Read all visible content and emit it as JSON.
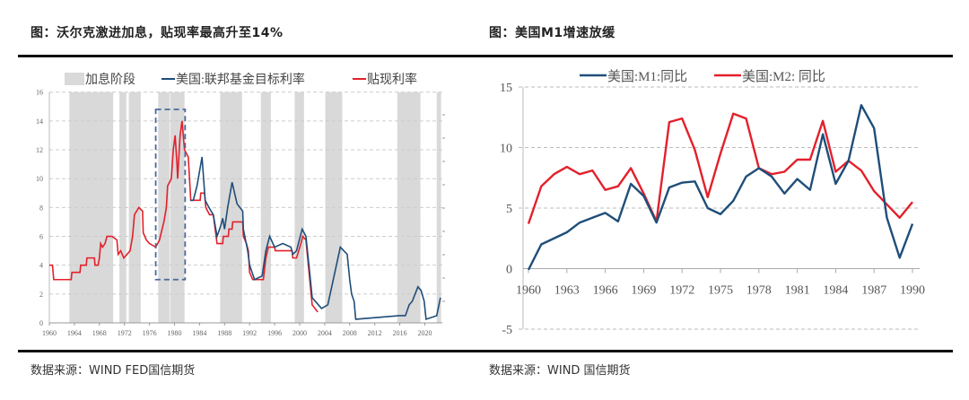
{
  "captions": {
    "left": "图：沃尔克激进加息，贴现率最高升至14%",
    "right": "图：美国M1增速放缓"
  },
  "sources": {
    "left": "数据来源：WIND FED国信期货",
    "right": "数据来源：WIND 国信期货"
  },
  "chart_data": [
    {
      "type": "line",
      "legend": {
        "placement": "top",
        "items": [
          "加息阶段",
          "美国:联邦基金目标利率",
          "贴现利率"
        ]
      },
      "colors": {
        "shade": "#d9d9d9",
        "fed": "#1f4e79",
        "discount": "#e3202b",
        "box": "#4a6a9a"
      },
      "xlim": [
        1960,
        2022.8
      ],
      "ylim": [
        0,
        16
      ],
      "x_ticks": [
        1960,
        1964,
        1968,
        1972,
        1976,
        1980,
        1984,
        1988,
        1992,
        1996,
        2000,
        2004,
        2008,
        2012,
        2016,
        2020
      ],
      "y_ticks": [
        0,
        2,
        4,
        6,
        8,
        10,
        12,
        14,
        16
      ],
      "grid": "horizontal dashed",
      "shaded_periods": [
        [
          1963.2,
          1970.2
        ],
        [
          1971.2,
          1972.3
        ],
        [
          1972.7,
          1974.6
        ],
        [
          1977.4,
          1979.2
        ],
        [
          1979.3,
          1981.6
        ],
        [
          1987.3,
          1990.8
        ],
        [
          1993.8,
          1995.4
        ],
        [
          1999.2,
          2000.7
        ],
        [
          2004.1,
          2006.8
        ],
        [
          2015.6,
          2019.3
        ],
        [
          2021.9,
          2022.6
        ]
      ],
      "highlight_box": {
        "x": [
          1977.0,
          1981.7
        ],
        "y": [
          3.0,
          14.8
        ]
      },
      "series": [
        {
          "name": "贴现利率",
          "points": [
            [
              1960,
              4
            ],
            [
              1960.5,
              4
            ],
            [
              1960.7,
              3
            ],
            [
              1963.5,
              3
            ],
            [
              1963.6,
              3.5
            ],
            [
              1964.9,
              3.5
            ],
            [
              1965,
              4
            ],
            [
              1965.9,
              4
            ],
            [
              1966,
              4.5
            ],
            [
              1967.2,
              4.5
            ],
            [
              1967.3,
              4
            ],
            [
              1967.8,
              4
            ],
            [
              1968,
              4.5
            ],
            [
              1968.2,
              5.5
            ],
            [
              1968.5,
              5.25
            ],
            [
              1968.9,
              5.5
            ],
            [
              1969.2,
              6
            ],
            [
              1970,
              6
            ],
            [
              1970.8,
              5.75
            ],
            [
              1971,
              4.75
            ],
            [
              1971.4,
              5
            ],
            [
              1971.9,
              4.5
            ],
            [
              1972.9,
              5
            ],
            [
              1973.3,
              6
            ],
            [
              1973.6,
              7.5
            ],
            [
              1974.3,
              8
            ],
            [
              1974.9,
              7.75
            ],
            [
              1975,
              6.25
            ],
            [
              1975.5,
              5.75
            ],
            [
              1976,
              5.5
            ],
            [
              1977,
              5.25
            ],
            [
              1977.6,
              5.75
            ],
            [
              1978.3,
              7
            ],
            [
              1978.7,
              8
            ],
            [
              1978.9,
              9.5
            ],
            [
              1979.5,
              10
            ],
            [
              1979.8,
              12
            ],
            [
              1980.1,
              13
            ],
            [
              1980.4,
              11
            ],
            [
              1980.5,
              10
            ],
            [
              1980.9,
              13
            ],
            [
              1981.2,
              14
            ],
            [
              1981.6,
              12
            ],
            [
              1982.2,
              11.5
            ],
            [
              1982.6,
              8.5
            ],
            [
              1984.1,
              8.5
            ],
            [
              1984.2,
              9
            ],
            [
              1984.8,
              9
            ],
            [
              1985,
              8
            ],
            [
              1985.6,
              7.5
            ],
            [
              1986.2,
              7.5
            ],
            [
              1986.5,
              6.5
            ],
            [
              1986.8,
              5.5
            ],
            [
              1987.7,
              5.5
            ],
            [
              1987.8,
              6
            ],
            [
              1988.6,
              6
            ],
            [
              1988.7,
              6.5
            ],
            [
              1989.2,
              6.5
            ],
            [
              1989.3,
              7
            ],
            [
              1990.9,
              7
            ],
            [
              1991,
              6
            ],
            [
              1991.5,
              5.5
            ],
            [
              1991.8,
              5
            ],
            [
              1992,
              3.5
            ],
            [
              1992.5,
              3
            ],
            [
              1994.2,
              3
            ],
            [
              1994.6,
              4.5
            ],
            [
              1995,
              5.25
            ],
            [
              1996,
              5.25
            ],
            [
              1996.1,
              5
            ],
            [
              1998.8,
              5
            ],
            [
              1998.9,
              4.5
            ],
            [
              1999.5,
              4.5
            ],
            [
              2000.2,
              5.5
            ],
            [
              2000.5,
              6
            ],
            [
              2001,
              5.75
            ],
            [
              2001.5,
              3.5
            ],
            [
              2002,
              1.25
            ],
            [
              2002.9,
              0.75
            ]
          ]
        },
        {
          "name": "美国:联邦基金目标利率",
          "points": [
            [
              1982.5,
              8.5
            ],
            [
              1983,
              8.5
            ],
            [
              1983.6,
              9.5
            ],
            [
              1984.4,
              11.5
            ],
            [
              1984.9,
              8.5
            ],
            [
              1985.5,
              8
            ],
            [
              1986.2,
              7.5
            ],
            [
              1986.8,
              6
            ],
            [
              1987.4,
              6.75
            ],
            [
              1987.7,
              7.25
            ],
            [
              1988,
              6.5
            ],
            [
              1988.5,
              8
            ],
            [
              1989.2,
              9.75
            ],
            [
              1989.6,
              9
            ],
            [
              1990,
              8.25
            ],
            [
              1990.9,
              7.75
            ],
            [
              1991,
              6.5
            ],
            [
              1991.7,
              5
            ],
            [
              1992,
              4
            ],
            [
              1992.8,
              3
            ],
            [
              1994,
              3.25
            ],
            [
              1994.6,
              5
            ],
            [
              1995.2,
              6
            ],
            [
              1996,
              5.25
            ],
            [
              1997.3,
              5.5
            ],
            [
              1998.6,
              5.25
            ],
            [
              1998.9,
              4.75
            ],
            [
              1999.5,
              5
            ],
            [
              2000.4,
              6.5
            ],
            [
              2001,
              6
            ],
            [
              2001.6,
              3.5
            ],
            [
              2002,
              1.75
            ],
            [
              2003.5,
              1
            ],
            [
              2004.5,
              1.25
            ],
            [
              2006.5,
              5.25
            ],
            [
              2007.6,
              4.75
            ],
            [
              2008,
              3
            ],
            [
              2008.3,
              2
            ],
            [
              2008.7,
              1.5
            ],
            [
              2008.96,
              0.25
            ],
            [
              2015.95,
              0.5
            ],
            [
              2016.9,
              0.5
            ],
            [
              2017.5,
              1.25
            ],
            [
              2018,
              1.5
            ],
            [
              2018.9,
              2.5
            ],
            [
              2019.4,
              2.25
            ],
            [
              2019.9,
              1.5
            ],
            [
              2020.2,
              0.25
            ],
            [
              2021.9,
              0.5
            ],
            [
              2022.5,
              1.75
            ]
          ]
        }
      ]
    },
    {
      "type": "line",
      "legend": {
        "placement": "top",
        "items": [
          "美国:M1:同比",
          "美国:M2: 同比"
        ]
      },
      "colors": {
        "m1": "#1f4e79",
        "m2": "#e3202b"
      },
      "xlim": [
        1960,
        1990
      ],
      "ylim": [
        -5,
        15
      ],
      "x_ticks": [
        1960,
        1963,
        1966,
        1969,
        1972,
        1975,
        1978,
        1981,
        1984,
        1987,
        1990
      ],
      "y_ticks": [
        -5,
        0,
        5,
        10,
        15
      ],
      "grid": "horizontal dashed",
      "x": [
        1960,
        1961,
        1962,
        1963,
        1964,
        1965,
        1966,
        1967,
        1968,
        1969,
        1970,
        1971,
        1972,
        1973,
        1974,
        1975,
        1976,
        1977,
        1978,
        1979,
        1980,
        1981,
        1982,
        1983,
        1984,
        1985,
        1986,
        1987,
        1988,
        1989,
        1990
      ],
      "series": [
        {
          "name": "美国:M1:同比",
          "values": [
            -0.1,
            2.0,
            2.5,
            3.0,
            3.8,
            4.2,
            4.6,
            3.9,
            7.0,
            6.0,
            3.8,
            6.7,
            7.1,
            7.2,
            5.0,
            4.5,
            5.6,
            7.6,
            8.3,
            7.6,
            6.2,
            7.4,
            6.5,
            11.1,
            7.0,
            8.9,
            13.5,
            11.6,
            4.2,
            0.9,
            3.7
          ]
        },
        {
          "name": "美国:M2: 同比",
          "values": [
            3.7,
            6.8,
            7.8,
            8.4,
            7.8,
            8.1,
            6.5,
            6.8,
            8.3,
            6.2,
            3.9,
            12.1,
            12.4,
            9.8,
            5.9,
            9.5,
            12.8,
            12.4,
            8.3,
            7.8,
            8.0,
            9.0,
            9.0,
            12.2,
            8.0,
            8.9,
            8.1,
            6.4,
            5.3,
            4.2,
            5.5
          ]
        }
      ]
    }
  ]
}
